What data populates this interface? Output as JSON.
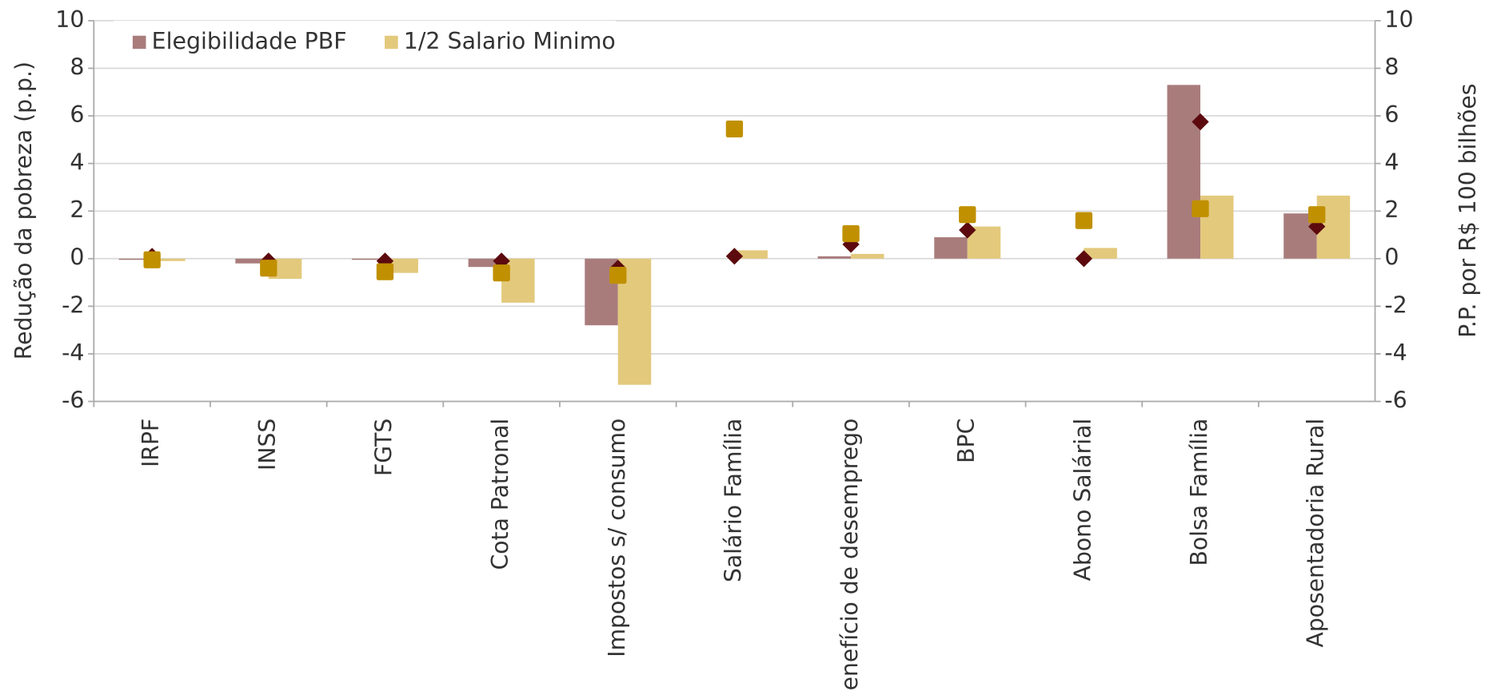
{
  "chart_data": {
    "type": "bar",
    "y_label": "Redução da pobreza (p.p.)",
    "y2_label": "P.P. por R$ 100 bilhões",
    "categories": [
      "IRPF",
      "INSS",
      "FGTS",
      "Cota Patronal",
      "Impostos s/ consumo",
      "Salário Família",
      "Benefício de desemprego",
      "BPC",
      "Abono Salárial",
      "Bolsa Família",
      "Aposentadoria Rural"
    ],
    "series": [
      {
        "name": "Elegibilidade PBF",
        "color": "#a97c7c",
        "values": [
          -0.05,
          -0.2,
          -0.05,
          -0.35,
          -2.8,
          0,
          0.1,
          0.9,
          0,
          7.3,
          1.9
        ]
      },
      {
        "name": "1/2 Salario Minimo",
        "color": "#e3c97c",
        "values": [
          -0.1,
          -0.85,
          -0.6,
          -1.85,
          -5.3,
          0.35,
          0.2,
          1.35,
          0.45,
          2.65,
          2.65
        ]
      },
      {
        "type": "scatter",
        "marker": "diamond",
        "axis": "y2",
        "color": "#5c0a0e",
        "values": [
          0.1,
          -0.1,
          -0.1,
          -0.1,
          -0.4,
          0.1,
          0.6,
          1.2,
          0,
          5.75,
          1.35
        ]
      },
      {
        "type": "scatter",
        "marker": "square",
        "axis": "y2",
        "color": "#c09000",
        "values": [
          -0.05,
          -0.4,
          -0.55,
          -0.6,
          -0.7,
          5.45,
          1.05,
          1.85,
          1.6,
          2.1,
          1.85
        ]
      }
    ],
    "ylim": [
      -6,
      10
    ],
    "yticks": [
      -6,
      -4,
      -2,
      0,
      2,
      4,
      6,
      8,
      10
    ],
    "y2lim": [
      -6,
      10
    ],
    "y2ticks": [
      -6,
      -4,
      -2,
      0,
      2,
      4,
      6,
      8,
      10
    ],
    "grid": true,
    "legend": "top-left"
  }
}
